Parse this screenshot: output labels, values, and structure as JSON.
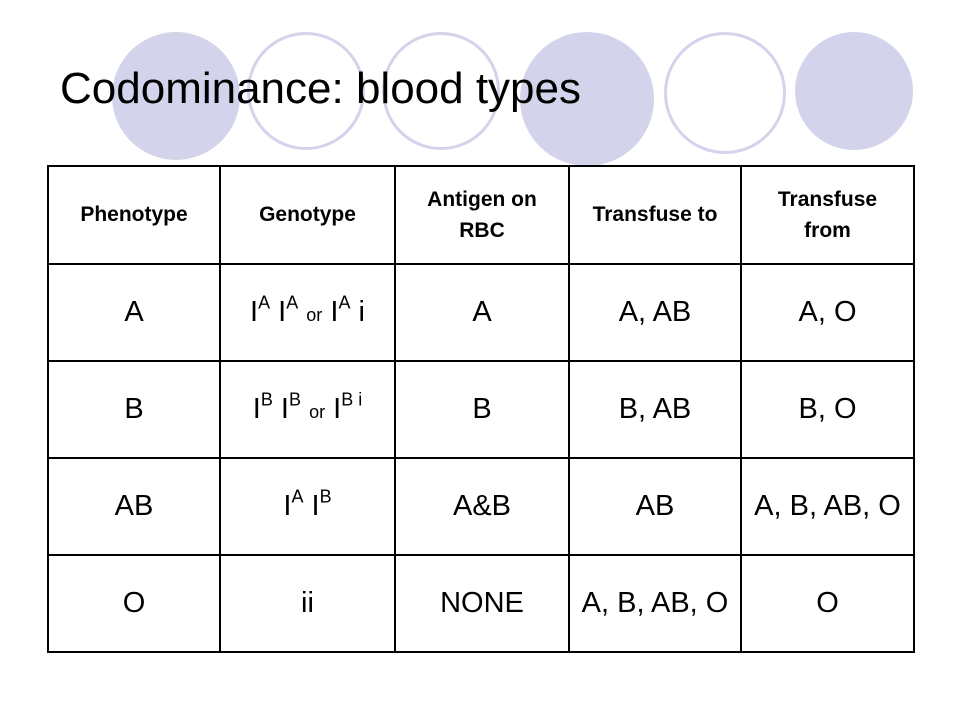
{
  "decor": {
    "accent_color": "#d3d3ec"
  },
  "slide": {
    "title": "Codominance:  blood types"
  },
  "table": {
    "headers": [
      "Phenotype",
      "Genotype",
      "Antigen on RBC",
      "Transfuse to",
      "Transfuse from"
    ],
    "rows": [
      {
        "phenotype": "A",
        "genotype": {
          "a1": "I",
          "a1_sup": "A",
          "a2": "I",
          "a2_sup": "A",
          "or": "or",
          "b1": "I",
          "b1_sup": "A",
          "b2": "i"
        },
        "antigen": "A",
        "transfuse_to": "A, AB",
        "transfuse_from": "A, O"
      },
      {
        "phenotype": "B",
        "genotype": {
          "a1": "I",
          "a1_sup": "B",
          "a2": "I",
          "a2_sup": "B",
          "or": "or",
          "b1": "I",
          "b1_sup": "B i"
        },
        "antigen": "B",
        "transfuse_to": "B, AB",
        "transfuse_from": "B, O"
      },
      {
        "phenotype": "AB",
        "genotype": {
          "a1": "I",
          "a1_sup": "A",
          "a2": "I",
          "a2_sup": "B"
        },
        "antigen": "A&B",
        "transfuse_to": "AB",
        "transfuse_from": "A, B, AB, O"
      },
      {
        "phenotype": "O",
        "genotype": {
          "text": "ii"
        },
        "antigen": "NONE",
        "transfuse_to": "A, B, AB, O",
        "transfuse_from": "O"
      }
    ]
  }
}
